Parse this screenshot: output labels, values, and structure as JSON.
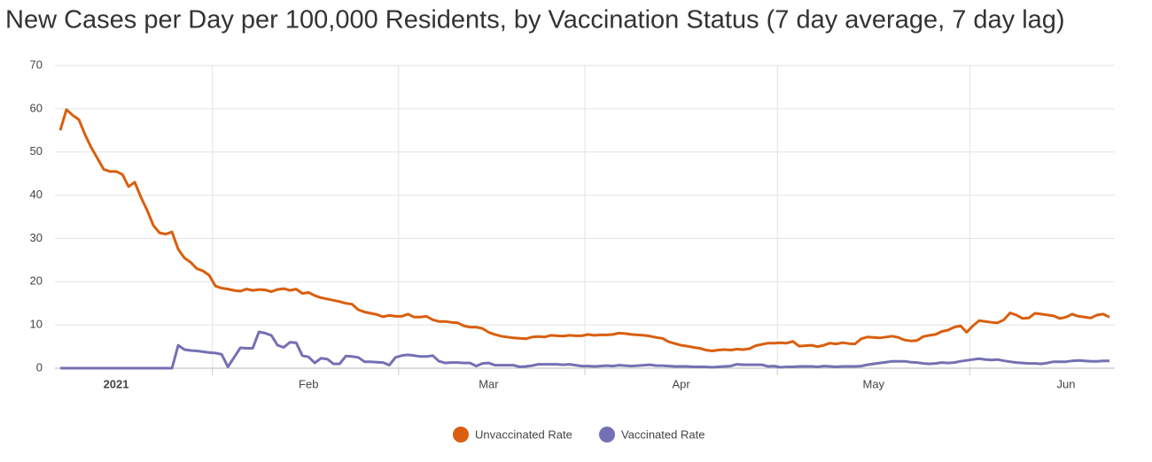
{
  "chart_data": {
    "type": "line",
    "title": "New Cases per Day per 100,000 Residents, by Vaccination Status (7 day average, 7 day lag)",
    "categories": [
      null,
      null,
      null,
      null,
      null,
      null,
      null,
      null,
      null,
      "2021",
      null,
      null,
      null,
      null,
      null,
      null,
      null,
      null,
      null,
      null,
      null,
      null,
      null,
      null,
      null,
      null,
      null,
      null,
      null,
      null,
      null,
      null,
      null,
      null,
      null,
      null,
      null,
      null,
      null,
      null,
      "Feb",
      null,
      null,
      null,
      null,
      null,
      null,
      null,
      null,
      null,
      null,
      null,
      null,
      null,
      null,
      null,
      null,
      null,
      null,
      null,
      null,
      null,
      null,
      null,
      null,
      null,
      null,
      null,
      null,
      "Mar",
      null,
      null,
      null,
      null,
      null,
      null,
      null,
      null,
      null,
      null,
      null,
      null,
      null,
      null,
      null,
      null,
      null,
      null,
      null,
      null,
      null,
      null,
      null,
      null,
      null,
      null,
      null,
      null,
      null,
      null,
      "Apr",
      null,
      null,
      null,
      null,
      null,
      null,
      null,
      null,
      null,
      null,
      null,
      null,
      null,
      null,
      null,
      null,
      null,
      null,
      null,
      null,
      null,
      null,
      null,
      null,
      null,
      null,
      null,
      null,
      null,
      null,
      "May",
      null,
      null,
      null,
      null,
      null,
      null,
      null,
      null,
      null,
      null,
      null,
      null,
      null,
      null,
      null,
      null,
      null,
      null,
      null,
      null,
      null,
      null,
      null,
      null,
      null,
      null,
      null,
      null,
      null,
      null,
      "Jun",
      null,
      null,
      null,
      null,
      null,
      null,
      null
    ],
    "series": [
      {
        "name": "Unvaccinated Rate",
        "color": "#d95f0e",
        "values": [
          55,
          59.8,
          58.5,
          57.5,
          54,
          51,
          48.5,
          46,
          45.5,
          45.5,
          44.8,
          42,
          43,
          39.5,
          36.5,
          33,
          31.3,
          31,
          31.5,
          27.5,
          25.5,
          24.5,
          23,
          22.5,
          21.5,
          19,
          18.5,
          18.3,
          18,
          17.8,
          18.3,
          18,
          18.2,
          18.1,
          17.7,
          18.2,
          18.4,
          18,
          18.3,
          17.3,
          17.5,
          16.8,
          16.3,
          16,
          15.7,
          15.4,
          15,
          14.8,
          13.5,
          13,
          12.7,
          12.4,
          11.9,
          12.2,
          12,
          12,
          12.5,
          11.8,
          11.8,
          12,
          11.2,
          10.8,
          10.8,
          10.6,
          10.5,
          9.8,
          9.5,
          9.5,
          9.2,
          8.3,
          7.8,
          7.4,
          7.2,
          7,
          6.9,
          6.8,
          7.2,
          7.3,
          7.2,
          7.6,
          7.5,
          7.4,
          7.6,
          7.5,
          7.5,
          7.8,
          7.6,
          7.7,
          7.7,
          7.8,
          8.1,
          8,
          7.8,
          7.7,
          7.6,
          7.4,
          7.1,
          6.9,
          6.1,
          5.7,
          5.3,
          5.1,
          4.8,
          4.6,
          4.2,
          4,
          4.2,
          4.3,
          4.2,
          4.4,
          4.3,
          4.5,
          5.2,
          5.5,
          5.8,
          5.8,
          5.9,
          5.8,
          6.2,
          5.1,
          5.2,
          5.3,
          5,
          5.3,
          5.8,
          5.6,
          5.9,
          5.7,
          5.6,
          6.8,
          7.2,
          7.1,
          7,
          7.2,
          7.4,
          7.1,
          6.5,
          6.3,
          6.4,
          7.3,
          7.6,
          7.8,
          8.5,
          8.8,
          9.5,
          9.8,
          8.3,
          9.8,
          11,
          10.8,
          10.6,
          10.5,
          11.2,
          12.8,
          12.3,
          11.5,
          11.6,
          12.7,
          12.5,
          12.3,
          12.1,
          11.5,
          11.8,
          12.5,
          12,
          11.8,
          11.6,
          12.3,
          12.5,
          11.8
        ]
      },
      {
        "name": "Vaccinated Rate",
        "color": "#7570b3",
        "values": [
          0,
          0,
          0,
          0,
          0,
          0,
          0,
          0,
          0,
          0,
          0,
          0,
          0,
          0,
          0,
          0,
          0,
          0,
          0,
          5.3,
          4.3,
          4.1,
          4,
          3.8,
          3.6,
          3.5,
          3.2,
          0.3,
          2.5,
          4.7,
          4.6,
          4.6,
          8.4,
          8.1,
          7.6,
          5.3,
          4.8,
          6,
          5.9,
          2.9,
          2.6,
          1.2,
          2.3,
          2.1,
          1,
          1,
          2.8,
          2.7,
          2.5,
          1.5,
          1.5,
          1.4,
          1.3,
          0.7,
          2.5,
          2.9,
          3.1,
          2.9,
          2.7,
          2.7,
          2.9,
          1.6,
          1.2,
          1.3,
          1.3,
          1.2,
          1.2,
          0.5,
          1.1,
          1.2,
          0.7,
          0.7,
          0.7,
          0.7,
          0.3,
          0.4,
          0.6,
          0.9,
          0.9,
          0.9,
          0.9,
          0.8,
          0.9,
          0.7,
          0.5,
          0.5,
          0.4,
          0.5,
          0.6,
          0.5,
          0.7,
          0.6,
          0.5,
          0.6,
          0.7,
          0.8,
          0.6,
          0.6,
          0.5,
          0.4,
          0.4,
          0.4,
          0.3,
          0.3,
          0.3,
          0.2,
          0.3,
          0.4,
          0.5,
          0.9,
          0.8,
          0.8,
          0.8,
          0.8,
          0.4,
          0.5,
          0.2,
          0.3,
          0.3,
          0.4,
          0.4,
          0.4,
          0.3,
          0.5,
          0.4,
          0.3,
          0.4,
          0.4,
          0.4,
          0.5,
          0.8,
          1,
          1.2,
          1.4,
          1.6,
          1.6,
          1.6,
          1.4,
          1.3,
          1.1,
          1,
          1.1,
          1.3,
          1.2,
          1.3,
          1.6,
          1.8,
          2,
          2.2,
          2,
          1.9,
          2,
          1.7,
          1.5,
          1.3,
          1.2,
          1.1,
          1.1,
          1,
          1.2,
          1.5,
          1.5,
          1.5,
          1.7,
          1.8,
          1.7,
          1.6,
          1.6,
          1.7,
          1.7
        ]
      }
    ],
    "ylim": [
      0,
      70
    ],
    "yticks": [
      0,
      10,
      20,
      30,
      40,
      50,
      60,
      70
    ],
    "grid": true,
    "legend": "bottom"
  }
}
